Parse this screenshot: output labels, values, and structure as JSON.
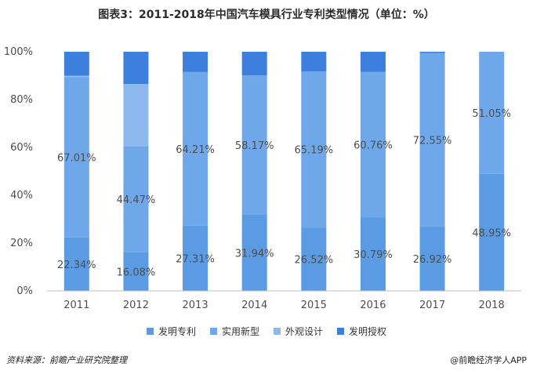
{
  "header": {
    "title": "图表3：2011-2018年中国汽车模具行业专利类型情况（单位：%）"
  },
  "footer": {
    "source": "资料来源：前瞻产业研究院整理",
    "brand": "@前瞻经济学人APP"
  },
  "colors": {
    "invention": "#5b9be3",
    "utility": "#6fa8ea",
    "design": "#8db9ef",
    "grant": "#3d7fdd",
    "axis": "#bfbfbf",
    "grid": "#e6e6e6",
    "label": "#4d4d4d"
  },
  "chart_data": {
    "type": "bar",
    "stacked": true,
    "categories": [
      "2011",
      "2012",
      "2013",
      "2014",
      "2015",
      "2016",
      "2017",
      "2018"
    ],
    "series": [
      {
        "name": "发明专利",
        "values": [
          22.34,
          16.08,
          27.31,
          31.94,
          26.52,
          30.79,
          26.92,
          48.95
        ]
      },
      {
        "name": "实用新型",
        "values": [
          67.01,
          44.47,
          64.21,
          58.17,
          65.19,
          60.76,
          72.55,
          51.05
        ]
      },
      {
        "name": "外观设计",
        "values": [
          0.65,
          26.0,
          0,
          0,
          0,
          0,
          0,
          0
        ]
      },
      {
        "name": "发明授权",
        "values": [
          10.0,
          13.45,
          8.48,
          9.89,
          8.29,
          8.45,
          0.53,
          0
        ]
      }
    ],
    "labels": {
      "invention": [
        "22.34%",
        "16.08%",
        "27.31%",
        "31.94%",
        "26.52%",
        "30.79%",
        "26.92%",
        "48.95%"
      ],
      "utility": [
        "67.01%",
        "44.47%",
        "64.21%",
        "58.17%",
        "65.19%",
        "60.76%",
        "72.55%",
        "51.05%"
      ]
    },
    "yticks": [
      "0%",
      "20%",
      "40%",
      "60%",
      "80%",
      "100%"
    ],
    "ylim": [
      0,
      100
    ],
    "grid": false,
    "legend": "bottom"
  }
}
